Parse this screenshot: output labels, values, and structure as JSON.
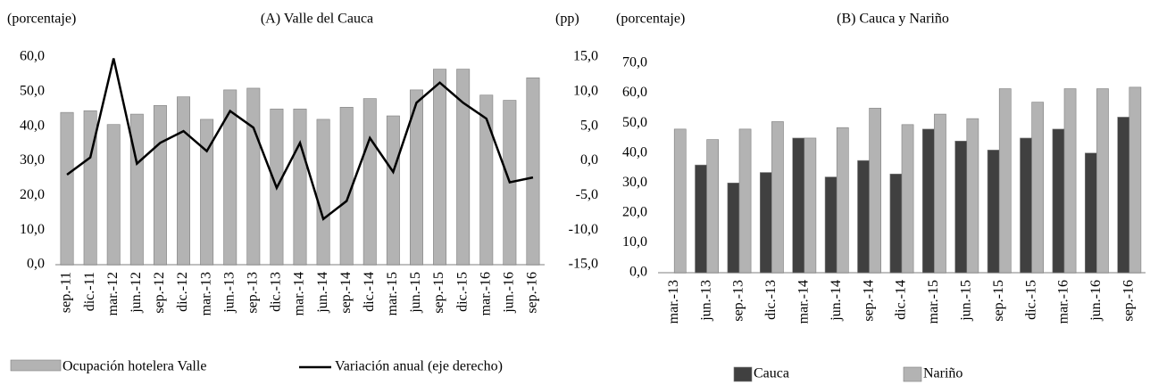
{
  "chart_data": [
    {
      "type": "bar",
      "title": "(A) Valle  del Cauca",
      "y_label": "(porcentaje)",
      "y2_label": "(pp)",
      "categories": [
        "sep.-11",
        "dic.-11",
        "mar.-12",
        "jun.-12",
        "sep.-12",
        "dic.-12",
        "mar.-13",
        "jun.-13",
        "sep.-13",
        "dic.-13",
        "mar.-14",
        "jun.-14",
        "sep.-14",
        "dic.-14",
        "mar.-15",
        "jun.-15",
        "sep.-15",
        "dic.-15",
        "mar.-16",
        "jun.-16",
        "sep.-16"
      ],
      "series": [
        {
          "name": "Ocupación hotelera Valle",
          "color": "#b3b3b3",
          "values": [
            44,
            44.5,
            40.5,
            43.5,
            46,
            48.5,
            42,
            50.5,
            51,
            45,
            45,
            42,
            45.5,
            48,
            43,
            50.5,
            56.5,
            56.5,
            49,
            47.5,
            54
          ]
        },
        {
          "name": "Variación anual (eje derecho)",
          "color": "#000000",
          "type": "line",
          "axis": "y2",
          "values": [
            -2.0,
            0.5,
            14.8,
            -0.4,
            2.6,
            4.3,
            1.4,
            7.2,
            4.8,
            -3.9,
            2.6,
            -8.4,
            -5.8,
            3.3,
            -1.6,
            8.4,
            11.3,
            8.4,
            6.1,
            -3.1,
            -2.4
          ]
        }
      ],
      "ylim": [
        0,
        60
      ],
      "yticks": [
        {
          "value": 0,
          "label": "0,0"
        },
        {
          "value": 10,
          "label": "10,0"
        },
        {
          "value": 20,
          "label": "20,0"
        },
        {
          "value": 30,
          "label": "30,0"
        },
        {
          "value": 40,
          "label": "40,0"
        },
        {
          "value": 50,
          "label": "50,0"
        },
        {
          "value": 60,
          "label": "60,0"
        }
      ],
      "y2lim": [
        -15,
        15
      ],
      "y2ticks": [
        {
          "value": -15,
          "label": "-15,0"
        },
        {
          "value": -10,
          "label": "-10,0"
        },
        {
          "value": -5,
          "label": "-5,0"
        },
        {
          "value": 0,
          "label": "0,0"
        },
        {
          "value": 5,
          "label": "5,0"
        },
        {
          "value": 10,
          "label": "10,0"
        },
        {
          "value": 15,
          "label": "15,0"
        }
      ],
      "legend": "bottom"
    },
    {
      "type": "bar",
      "title": "(B) Cauca y Nariño",
      "y_label": "(porcentaje)",
      "categories": [
        "mar.-13",
        "jun.-13",
        "sep.-13",
        "dic.-13",
        "mar.-14",
        "jun.-14",
        "sep.-14",
        "dic.-14",
        "mar.-15",
        "jun.-15",
        "sep.-15",
        "dic.-15",
        "mar.-16",
        "jun.-16",
        "sep.-16"
      ],
      "series": [
        {
          "name": "Cauca",
          "color": "#404040",
          "values": [
            null,
            36,
            30,
            33.5,
            45,
            32,
            37.5,
            33,
            48,
            44,
            41,
            45,
            48,
            40,
            52
          ]
        },
        {
          "name": "Nariño",
          "color": "#b3b3b3",
          "values": [
            48,
            44.5,
            48,
            50.5,
            45,
            48.5,
            55,
            49.5,
            53,
            51.5,
            61.5,
            57,
            61.5,
            61.5,
            62
          ]
        }
      ],
      "ylim": [
        0,
        70
      ],
      "yticks": [
        {
          "value": 0,
          "label": "0,0"
        },
        {
          "value": 10,
          "label": "10,0"
        },
        {
          "value": 20,
          "label": "20,0"
        },
        {
          "value": 30,
          "label": "30,0"
        },
        {
          "value": 40,
          "label": "40,0"
        },
        {
          "value": 50,
          "label": "50,0"
        },
        {
          "value": 60,
          "label": "60,0"
        },
        {
          "value": 70,
          "label": "70,0"
        }
      ],
      "legend": "bottom"
    }
  ]
}
